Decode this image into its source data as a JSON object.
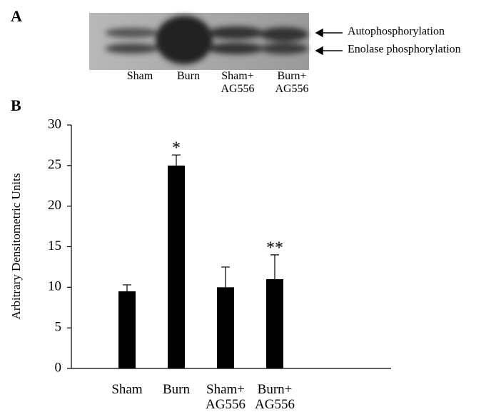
{
  "panel_a": {
    "label": "A",
    "arrows": [
      "Autophosphorylation",
      "Enolase phosphorylation"
    ],
    "lanes": [
      "Sham",
      "Burn",
      "Sham+ AG556",
      "Burn+ AG556"
    ]
  },
  "panel_b": {
    "label": "B"
  },
  "chart_data": {
    "type": "bar",
    "y_label": "Arbitrary Densitometric Units",
    "categories": [
      "Sham",
      "Burn",
      "Sham+ AG556",
      "Burn+ AG556"
    ],
    "values": [
      9.5,
      25,
      10,
      11
    ],
    "errors": [
      0.8,
      1.3,
      2.5,
      3
    ],
    "annotations": [
      null,
      "*",
      null,
      "**"
    ],
    "color": "#000000",
    "ylim": [
      0,
      30
    ],
    "yticks": [
      0,
      5,
      10,
      15,
      20,
      25,
      30
    ],
    "grid": false
  }
}
